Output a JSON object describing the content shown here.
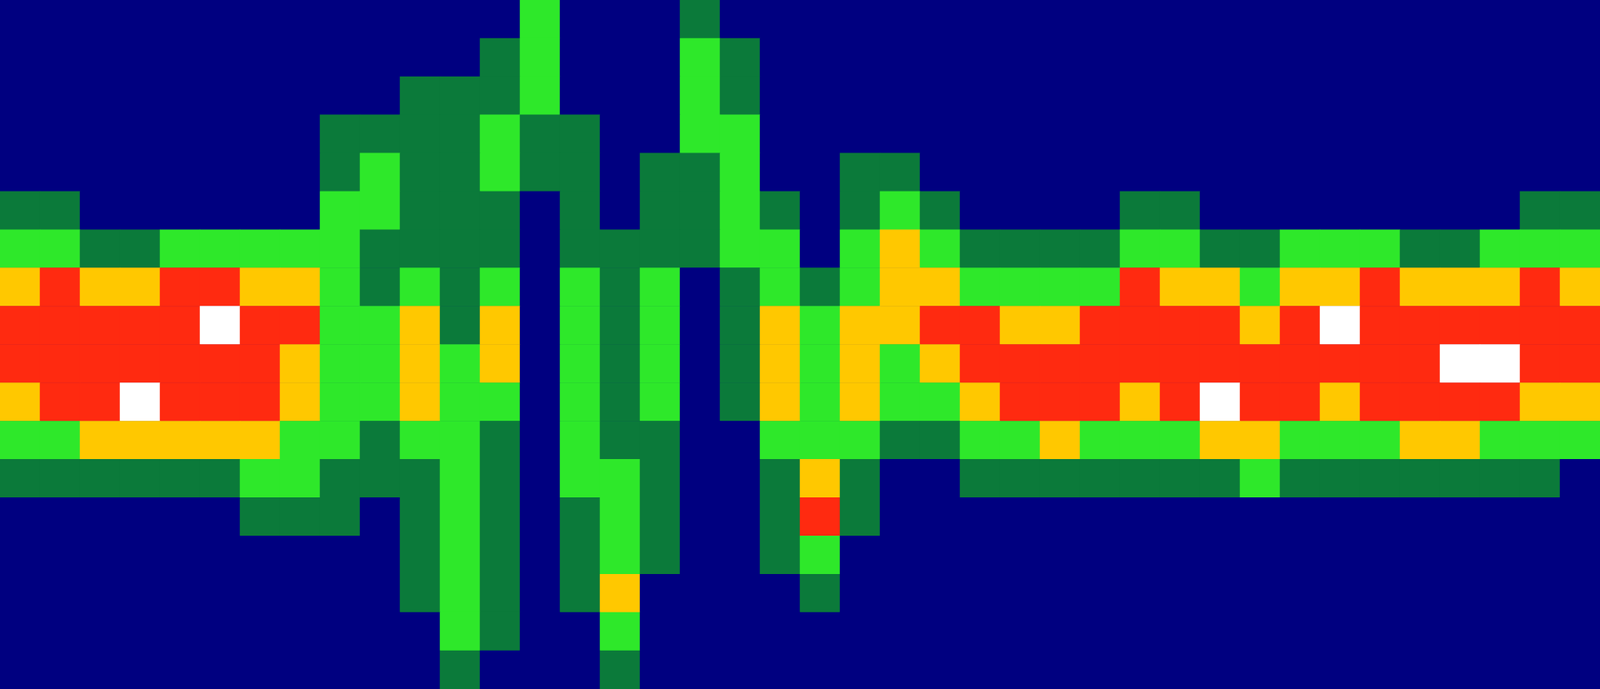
{
  "chart_data": {
    "type": "heatmap",
    "tick_labels": false,
    "grid": false,
    "color_range": [
      0,
      5
    ],
    "colors": [
      "#000080",
      "#0b7a3a",
      "#2ee82a",
      "#ffc800",
      "#ff2a10",
      "#ffffff"
    ],
    "cells": [
      [
        0,
        0,
        0,
        0,
        0,
        0,
        0,
        0,
        0,
        0,
        0,
        0,
        0,
        2,
        0,
        0,
        0,
        1,
        0,
        0,
        0,
        0,
        0,
        0,
        0,
        0,
        0,
        0,
        0,
        0,
        0,
        0,
        0,
        0,
        0,
        0,
        0,
        0,
        0,
        0
      ],
      [
        0,
        0,
        0,
        0,
        0,
        0,
        0,
        0,
        0,
        0,
        0,
        0,
        1,
        2,
        0,
        0,
        0,
        2,
        1,
        0,
        0,
        0,
        0,
        0,
        0,
        0,
        0,
        0,
        0,
        0,
        0,
        0,
        0,
        0,
        0,
        0,
        0,
        0,
        0,
        0
      ],
      [
        0,
        0,
        0,
        0,
        0,
        0,
        0,
        0,
        0,
        0,
        1,
        1,
        1,
        2,
        0,
        0,
        0,
        2,
        1,
        0,
        0,
        0,
        0,
        0,
        0,
        0,
        0,
        0,
        0,
        0,
        0,
        0,
        0,
        0,
        0,
        0,
        0,
        0,
        0,
        0
      ],
      [
        0,
        0,
        0,
        0,
        0,
        0,
        0,
        0,
        1,
        1,
        1,
        1,
        2,
        1,
        1,
        0,
        0,
        2,
        2,
        0,
        0,
        0,
        0,
        0,
        0,
        0,
        0,
        0,
        0,
        0,
        0,
        0,
        0,
        0,
        0,
        0,
        0,
        0,
        0,
        0
      ],
      [
        0,
        0,
        0,
        0,
        0,
        0,
        0,
        0,
        1,
        2,
        1,
        1,
        2,
        1,
        1,
        0,
        1,
        1,
        2,
        0,
        0,
        1,
        1,
        0,
        0,
        0,
        0,
        0,
        0,
        0,
        0,
        0,
        0,
        0,
        0,
        0,
        0,
        0,
        0,
        0
      ],
      [
        1,
        1,
        0,
        0,
        0,
        0,
        0,
        0,
        2,
        2,
        1,
        1,
        1,
        0,
        1,
        0,
        1,
        1,
        2,
        1,
        0,
        1,
        2,
        1,
        0,
        0,
        0,
        0,
        1,
        1,
        0,
        0,
        0,
        0,
        0,
        0,
        0,
        0,
        1,
        1
      ],
      [
        2,
        2,
        1,
        1,
        2,
        2,
        2,
        2,
        2,
        1,
        1,
        1,
        1,
        0,
        1,
        1,
        1,
        1,
        2,
        2,
        0,
        2,
        3,
        2,
        1,
        1,
        1,
        1,
        2,
        2,
        1,
        1,
        2,
        2,
        2,
        1,
        1,
        2,
        2,
        2
      ],
      [
        3,
        4,
        3,
        3,
        4,
        4,
        3,
        3,
        2,
        1,
        2,
        1,
        2,
        0,
        2,
        1,
        2,
        0,
        1,
        2,
        1,
        2,
        3,
        3,
        2,
        2,
        2,
        2,
        4,
        3,
        3,
        2,
        3,
        3,
        4,
        3,
        3,
        3,
        4,
        3
      ],
      [
        4,
        4,
        4,
        4,
        4,
        5,
        4,
        4,
        2,
        2,
        3,
        1,
        3,
        0,
        2,
        1,
        2,
        0,
        1,
        3,
        2,
        3,
        3,
        4,
        4,
        3,
        3,
        4,
        4,
        4,
        4,
        3,
        4,
        5,
        4,
        4,
        4,
        4,
        4,
        4
      ],
      [
        4,
        4,
        4,
        4,
        4,
        4,
        4,
        3,
        2,
        2,
        3,
        2,
        3,
        0,
        2,
        1,
        2,
        0,
        1,
        3,
        2,
        3,
        2,
        3,
        4,
        4,
        4,
        4,
        4,
        4,
        4,
        4,
        4,
        4,
        4,
        4,
        5,
        5,
        4,
        4
      ],
      [
        3,
        4,
        4,
        5,
        4,
        4,
        4,
        3,
        2,
        2,
        3,
        2,
        2,
        0,
        2,
        1,
        2,
        0,
        1,
        3,
        2,
        3,
        2,
        2,
        3,
        4,
        4,
        4,
        3,
        4,
        5,
        4,
        4,
        3,
        4,
        4,
        4,
        4,
        3,
        3
      ],
      [
        2,
        2,
        3,
        3,
        3,
        3,
        3,
        2,
        2,
        1,
        2,
        2,
        1,
        0,
        2,
        1,
        1,
        0,
        0,
        2,
        2,
        2,
        1,
        1,
        2,
        2,
        3,
        2,
        2,
        2,
        3,
        3,
        2,
        2,
        2,
        3,
        3,
        2,
        2,
        2
      ],
      [
        1,
        1,
        1,
        1,
        1,
        1,
        2,
        2,
        1,
        1,
        1,
        2,
        1,
        0,
        2,
        2,
        1,
        0,
        0,
        1,
        3,
        1,
        0,
        0,
        1,
        1,
        1,
        1,
        1,
        1,
        1,
        2,
        1,
        1,
        1,
        1,
        1,
        1,
        1,
        0
      ],
      [
        0,
        0,
        0,
        0,
        0,
        0,
        1,
        1,
        1,
        0,
        1,
        2,
        1,
        0,
        1,
        2,
        1,
        0,
        0,
        1,
        4,
        1,
        0,
        0,
        0,
        0,
        0,
        0,
        0,
        0,
        0,
        0,
        0,
        0,
        0,
        0,
        0,
        0,
        0,
        0
      ],
      [
        0,
        0,
        0,
        0,
        0,
        0,
        0,
        0,
        0,
        0,
        1,
        2,
        1,
        0,
        1,
        2,
        1,
        0,
        0,
        1,
        2,
        0,
        0,
        0,
        0,
        0,
        0,
        0,
        0,
        0,
        0,
        0,
        0,
        0,
        0,
        0,
        0,
        0,
        0,
        0
      ],
      [
        0,
        0,
        0,
        0,
        0,
        0,
        0,
        0,
        0,
        0,
        1,
        2,
        1,
        0,
        1,
        3,
        0,
        0,
        0,
        0,
        1,
        0,
        0,
        0,
        0,
        0,
        0,
        0,
        0,
        0,
        0,
        0,
        0,
        0,
        0,
        0,
        0,
        0,
        0,
        0
      ],
      [
        0,
        0,
        0,
        0,
        0,
        0,
        0,
        0,
        0,
        0,
        0,
        2,
        1,
        0,
        0,
        2,
        0,
        0,
        0,
        0,
        0,
        0,
        0,
        0,
        0,
        0,
        0,
        0,
        0,
        0,
        0,
        0,
        0,
        0,
        0,
        0,
        0,
        0,
        0,
        0
      ],
      [
        0,
        0,
        0,
        0,
        0,
        0,
        0,
        0,
        0,
        0,
        0,
        1,
        0,
        0,
        0,
        1,
        0,
        0,
        0,
        0,
        0,
        0,
        0,
        0,
        0,
        0,
        0,
        0,
        0,
        0,
        0,
        0,
        0,
        0,
        0,
        0,
        0,
        0,
        0,
        0
      ]
    ]
  }
}
